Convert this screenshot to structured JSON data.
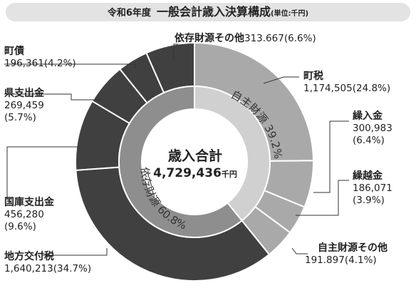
{
  "title": {
    "prefix": "令和6年度",
    "main": "一般会計歳入決算構成",
    "unit": "(単位:千円)"
  },
  "center": {
    "label": "歳入合計",
    "total": "4,729,436",
    "unit": "千円"
  },
  "inner_ring": {
    "jishu": {
      "label": "自主財源 39.2%",
      "percent": 39.2
    },
    "izon": {
      "label": "依存財源 60.8%",
      "percent": 60.8
    }
  },
  "chart_data": {
    "type": "pie",
    "title": "一般会計歳入決算構成",
    "unit": "千円",
    "total": 4729436,
    "slices": [
      {
        "name": "町税",
        "value": 1174505,
        "percent": 24.8,
        "group": "自主財源"
      },
      {
        "name": "繰入金",
        "value": 300983,
        "percent": 6.4,
        "group": "自主財源"
      },
      {
        "name": "繰越金",
        "value": 186071,
        "percent": 3.9,
        "group": "自主財源"
      },
      {
        "name": "自主財源その他",
        "value": 191897,
        "percent": 4.1,
        "group": "自主財源"
      },
      {
        "name": "地方交付税",
        "value": 1640213,
        "percent": 34.7,
        "group": "依存財源"
      },
      {
        "name": "国庫支出金",
        "value": 456280,
        "percent": 9.6,
        "group": "依存財源"
      },
      {
        "name": "県支出金",
        "value": 269459,
        "percent": 5.7,
        "group": "依存財源"
      },
      {
        "name": "町債",
        "value": 196361,
        "percent": 4.2,
        "group": "依存財源"
      },
      {
        "name": "依存財源その他",
        "value": 313667,
        "percent": 6.6,
        "group": "依存財源"
      }
    ],
    "groups": [
      {
        "name": "自主財源",
        "percent": 39.2
      },
      {
        "name": "依存財源",
        "percent": 60.8
      }
    ],
    "colors": {
      "jishu": "#a9a9a9",
      "izon": "#404040",
      "separator": "#ffffff"
    }
  },
  "labels": {
    "zeichozei": {
      "name": "町税",
      "value": "1,174,505",
      "pct": "(24.8%)"
    },
    "kuriire": {
      "name": "繰入金",
      "value": "300,983",
      "pct": "(6.4%)"
    },
    "kurikoshi": {
      "name": "繰越金",
      "value": "186,071",
      "pct": "(3.9%)"
    },
    "jishu_other": {
      "name": "自主財源その他",
      "value": "191.897",
      "pct": "(4.1%)"
    },
    "kofuzei": {
      "name": "地方交付税",
      "value": "1,640,213",
      "pct": "(34.7%)"
    },
    "kokko": {
      "name": "国庫支出金",
      "value": "456,280",
      "pct": "(9.6%)"
    },
    "ken": {
      "name": "県支出金",
      "value": "269,459",
      "pct": "(5.7%)"
    },
    "chosai": {
      "name": "町債",
      "value": "196,361",
      "pct": "(4.2%)"
    },
    "izon_other": {
      "name": "依存財源その他",
      "value": "313.667",
      "pct": "(6.6%)"
    }
  }
}
